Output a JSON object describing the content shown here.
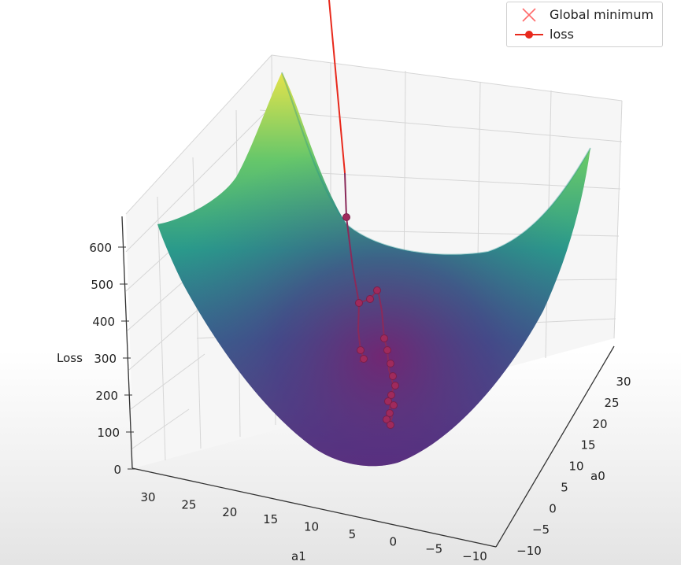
{
  "chart_data": {
    "type": "surface3d",
    "surface_colormap": "viridis",
    "axes": {
      "x": {
        "label": "a1",
        "ticks": [
          "30",
          "25",
          "20",
          "15",
          "10",
          "5",
          "0",
          "−5",
          "−10"
        ]
      },
      "y": {
        "label": "a0",
        "ticks": [
          "30",
          "25",
          "20",
          "15",
          "10",
          "5",
          "0",
          "−5",
          "−10"
        ]
      },
      "z": {
        "label": "Loss",
        "ticks": [
          "0",
          "100",
          "200",
          "300",
          "400",
          "500",
          "600"
        ]
      }
    },
    "legend": {
      "position": "top-right",
      "entries": [
        {
          "label": "Global minimum",
          "marker": "x",
          "color": "#ff6a6a"
        },
        {
          "label": "loss",
          "marker": "o-",
          "color": "#e8291c"
        }
      ]
    },
    "series": [
      {
        "name": "loss",
        "color": "#e8291c",
        "path_note": "gradient descent trajectory descending into the bowl"
      }
    ],
    "grid": true
  }
}
